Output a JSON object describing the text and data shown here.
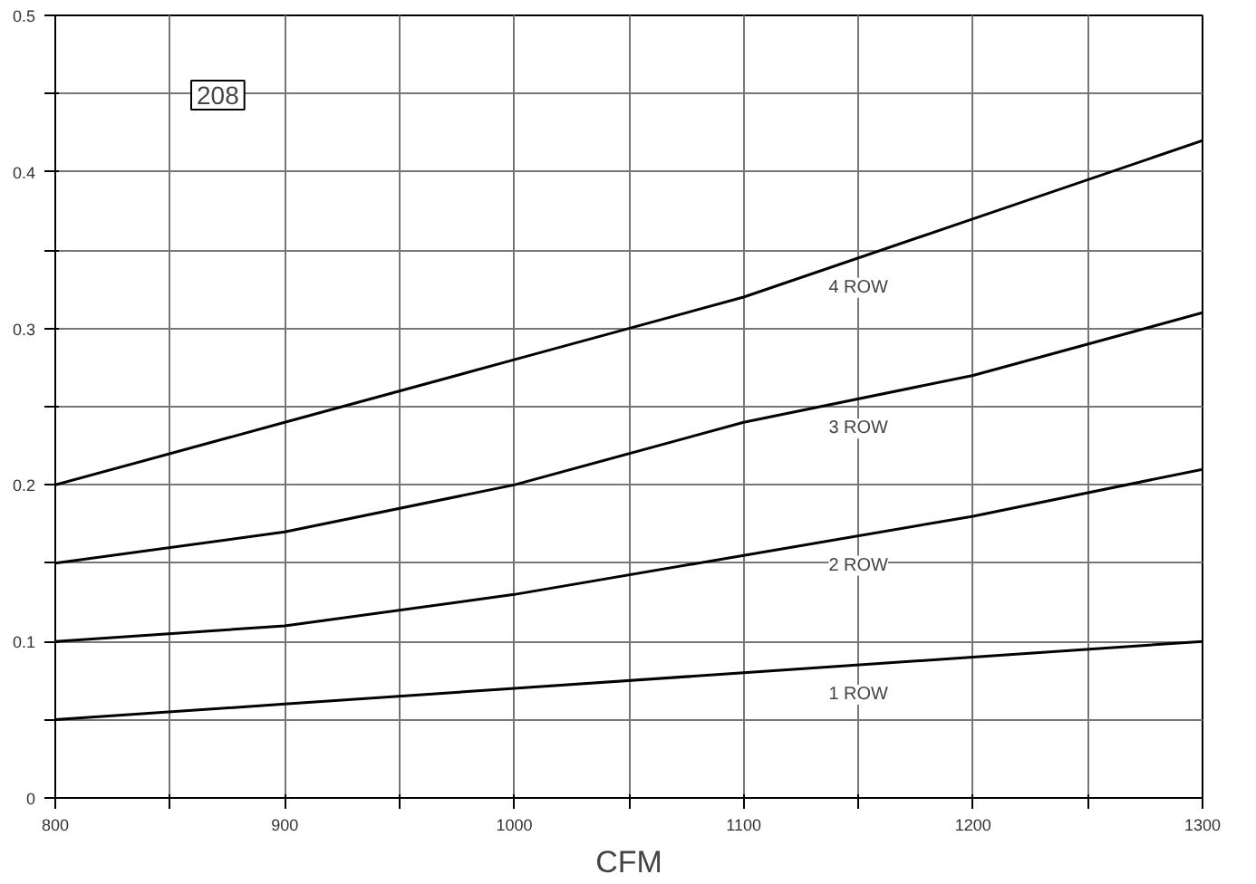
{
  "chart_data": {
    "type": "line",
    "xlabel": "CFM",
    "annotations": [
      "208"
    ],
    "x": [
      800,
      900,
      1000,
      1100,
      1200,
      1300
    ],
    "xlim": [
      800,
      1300
    ],
    "ylim": [
      0,
      0.5
    ],
    "xticks": [
      800,
      {
        "value": 850,
        "label": null
      },
      900,
      {
        "value": 950,
        "label": null
      },
      1000,
      {
        "value": 1050,
        "label": null
      },
      1100,
      {
        "value": 1150,
        "label": null
      },
      1200,
      {
        "value": 1250,
        "label": null
      },
      1300
    ],
    "yticks": [
      0,
      {
        "value": 0.05,
        "label": null
      },
      0.1,
      {
        "value": 0.15,
        "label": null
      },
      0.2,
      {
        "value": 0.25,
        "label": null
      },
      0.3,
      {
        "value": 0.35,
        "label": null
      },
      0.4,
      {
        "value": 0.45,
        "label": null
      },
      0.5
    ],
    "grid": true,
    "line_style": "solid",
    "series": [
      {
        "name": "4 ROW",
        "color": "#000000",
        "values": [
          0.2,
          0.24,
          0.28,
          0.32,
          0.37,
          0.42
        ]
      },
      {
        "name": "3 ROW",
        "color": "#000000",
        "values": [
          0.15,
          0.17,
          0.2,
          0.24,
          0.27,
          0.31
        ]
      },
      {
        "name": "2 ROW",
        "color": "#000000",
        "values": [
          0.1,
          0.11,
          0.13,
          0.155,
          0.18,
          0.21
        ]
      },
      {
        "name": "1 ROW",
        "color": "#000000",
        "values": [
          0.05,
          0.06,
          0.07,
          0.08,
          0.09,
          0.1
        ]
      }
    ]
  }
}
